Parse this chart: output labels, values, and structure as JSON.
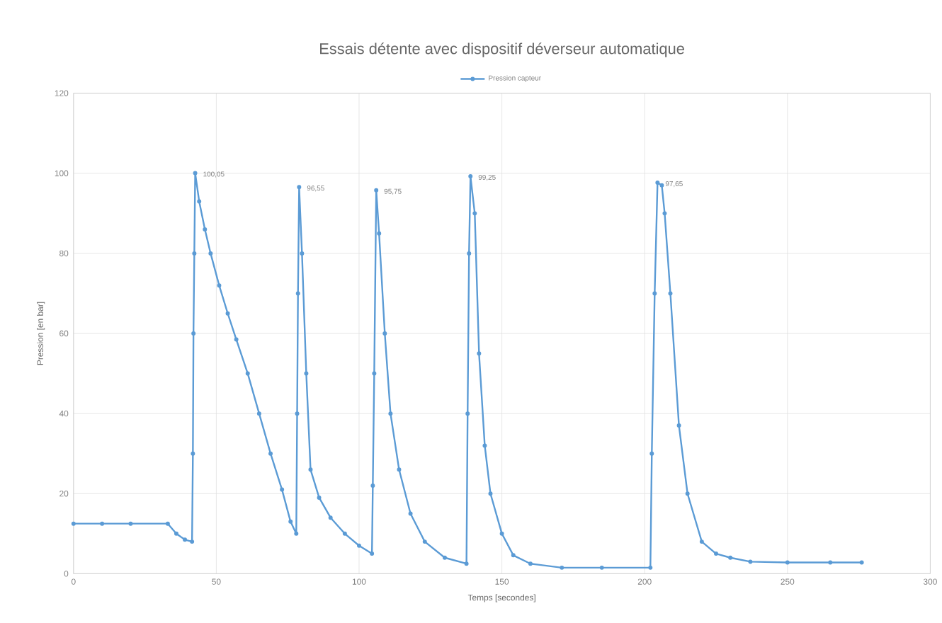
{
  "chart_data": {
    "type": "line",
    "title": "Essais détente avec dispositif déverseur automatique",
    "xlabel": "Temps [secondes]",
    "ylabel": "Pression [en bar]",
    "xlim": [
      0,
      300
    ],
    "xticks": [
      0,
      50,
      100,
      150,
      200,
      250,
      300
    ],
    "ylim": [
      0,
      120
    ],
    "yticks": [
      0,
      20,
      40,
      60,
      80,
      100,
      120
    ],
    "grid": true,
    "legend": "top",
    "marker": "circle",
    "line_style": "solid",
    "series": [
      {
        "name": "Pression capteur",
        "color": "#5b9bd5",
        "x": [
          0,
          10,
          20,
          33,
          36,
          39,
          41.5,
          41.8,
          42,
          42.3,
          42.6,
          44,
          46,
          48,
          51,
          54,
          57,
          61,
          65,
          69,
          73,
          76,
          78,
          78.3,
          78.6,
          79,
          80,
          81.5,
          83,
          86,
          90,
          95,
          100,
          104.5,
          104.8,
          105.3,
          106,
          107,
          109,
          111,
          114,
          118,
          123,
          130,
          137.6,
          138,
          138.5,
          139,
          140.5,
          142,
          144,
          146,
          150,
          154,
          160,
          171,
          185,
          202,
          202.5,
          203.5,
          204.5,
          206,
          207,
          209,
          212,
          215,
          220,
          225,
          230,
          237,
          250,
          265,
          276
        ],
        "values": [
          12.5,
          12.5,
          12.5,
          12.5,
          10,
          8.5,
          8,
          30,
          60,
          80,
          100.05,
          93,
          86,
          80,
          72,
          65,
          58.5,
          50,
          40,
          30,
          21,
          13,
          10,
          40,
          70,
          96.55,
          80,
          50,
          26,
          19,
          14,
          10,
          7,
          5,
          22,
          50,
          95.75,
          85,
          60,
          40,
          26,
          15,
          8,
          4,
          2.5,
          40,
          80,
          99.25,
          90,
          55,
          32,
          20,
          10,
          4.6,
          2.5,
          1.5,
          1.5,
          1.5,
          30,
          70,
          97.65,
          97,
          90,
          70,
          37,
          20,
          8,
          5,
          4,
          3,
          2.8,
          2.8,
          2.8
        ]
      }
    ],
    "annotations": [
      {
        "text": "100,05",
        "x": 42.6,
        "y": 100.05
      },
      {
        "text": "96,55",
        "x": 79,
        "y": 96.55
      },
      {
        "text": "95,75",
        "x": 106,
        "y": 95.75
      },
      {
        "text": "99,25",
        "x": 139,
        "y": 99.25
      },
      {
        "text": "97,65",
        "x": 204.5,
        "y": 97.65
      }
    ]
  }
}
